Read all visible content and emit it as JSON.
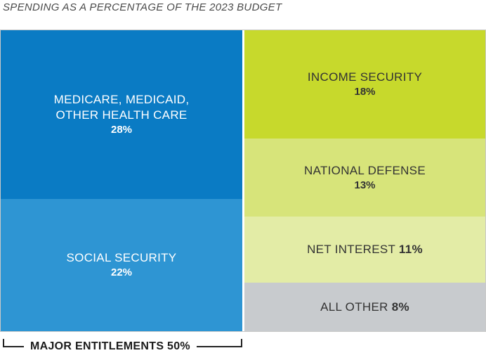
{
  "chart_title": "SPENDING AS A PERCENTAGE OF THE 2023 BUDGET",
  "bracket_label": "MAJOR ENTITLEMENTS 50%",
  "chart_data": {
    "type": "treemap",
    "title": "SPENDING AS A PERCENTAGE OF THE 2023 BUDGET",
    "unit": "%",
    "categories": [
      "MEDICARE, MEDICAID, OTHER HEALTH CARE",
      "SOCIAL SECURITY",
      "INCOME SECURITY",
      "NATIONAL DEFENSE",
      "NET INTEREST",
      "ALL OTHER"
    ],
    "values": [
      28,
      22,
      18,
      13,
      11,
      8
    ],
    "labels": [
      "28%",
      "22%",
      "18%",
      "13%",
      "11%",
      "8%"
    ],
    "colors": [
      "#0a7bc4",
      "#2e95d3",
      "#c7d92c",
      "#d7e47a",
      "#e3eca6",
      "#c8cbce"
    ],
    "text_colors": [
      "#ffffff",
      "#ffffff",
      "#333333",
      "#333333",
      "#333333",
      "#333333"
    ],
    "group_annotation": {
      "label": "MAJOR ENTITLEMENTS 50%",
      "members": [
        "MEDICARE, MEDICAID, OTHER HEALTH CARE",
        "SOCIAL SECURITY"
      ]
    }
  }
}
